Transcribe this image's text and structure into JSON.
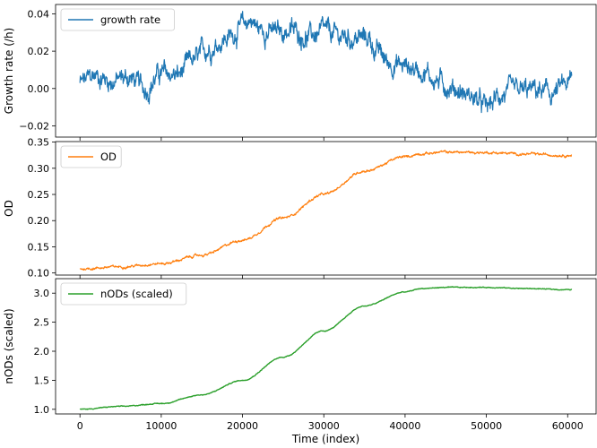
{
  "chart_data": [
    {
      "type": "line",
      "ylabel": "Growth rate (/h)",
      "xlim": [
        -3000,
        63500
      ],
      "ylim": [
        -0.026,
        0.045
      ],
      "yticks": [
        -0.02,
        0.0,
        0.02,
        0.04
      ],
      "ytick_labels": [
        "−0.02",
        "0.00",
        "0.02",
        "0.04"
      ],
      "legend_position": "upper left",
      "series": [
        {
          "name": "growth rate",
          "color": "#1f77b4",
          "noise": 0.0045,
          "x": [
            0,
            2000,
            4000,
            6000,
            8000,
            10000,
            12000,
            14000,
            16000,
            18000,
            20000,
            21000,
            22000,
            24000,
            26000,
            28000,
            30000,
            32000,
            34000,
            35500,
            36500,
            38000,
            40000,
            42000,
            44000,
            46000,
            48000,
            50000,
            52000,
            54000,
            56000,
            58000,
            60000,
            60500
          ],
          "y": [
            0.003,
            0.007,
            0.004,
            0.006,
            0.0,
            0.008,
            0.007,
            0.015,
            0.022,
            0.027,
            0.033,
            0.037,
            0.032,
            0.03,
            0.031,
            0.028,
            0.03,
            0.028,
            0.027,
            0.027,
            0.02,
            0.014,
            0.012,
            0.01,
            0.004,
            0.0,
            -0.004,
            -0.01,
            -0.003,
            -0.002,
            -0.001,
            -0.003,
            0.002,
            0.004
          ]
        }
      ]
    },
    {
      "type": "line",
      "ylabel": "OD",
      "xlim": [
        -3000,
        63500
      ],
      "ylim": [
        0.096,
        0.351
      ],
      "yticks": [
        0.1,
        0.15,
        0.2,
        0.25,
        0.3,
        0.35
      ],
      "ytick_labels": [
        "0.10",
        "0.15",
        "0.20",
        "0.25",
        "0.30",
        "0.35"
      ],
      "legend_position": "upper left",
      "series": [
        {
          "name": "OD",
          "color": "#ff7f0e",
          "noise": 0.002,
          "x": [
            0,
            5000,
            10000,
            15000,
            20000,
            25000,
            30000,
            35000,
            40000,
            42000,
            45000,
            50000,
            55000,
            60000,
            60500
          ],
          "y": [
            0.108,
            0.112,
            0.118,
            0.134,
            0.163,
            0.205,
            0.25,
            0.295,
            0.322,
            0.328,
            0.331,
            0.33,
            0.327,
            0.325,
            0.325
          ]
        }
      ]
    },
    {
      "type": "line",
      "ylabel": "nODs (scaled)",
      "xlabel": "Time (index)",
      "xlim": [
        -3000,
        63500
      ],
      "ylim": [
        0.92,
        3.25
      ],
      "yticks": [
        1.0,
        1.5,
        2.0,
        2.5,
        3.0
      ],
      "ytick_labels": [
        "1.0",
        "1.5",
        "2.0",
        "2.5",
        "3.0"
      ],
      "xticks": [
        0,
        10000,
        20000,
        30000,
        40000,
        50000,
        60000
      ],
      "xtick_labels": [
        "0",
        "10000",
        "20000",
        "30000",
        "40000",
        "50000",
        "60000"
      ],
      "legend_position": "upper left",
      "series": [
        {
          "name": "nODs (scaled)",
          "color": "#2ca02c",
          "noise": 0.006,
          "x": [
            0,
            5000,
            10000,
            15000,
            20000,
            25000,
            30000,
            35000,
            40000,
            42000,
            45000,
            50000,
            55000,
            60000,
            60500
          ],
          "y": [
            1.0,
            1.05,
            1.1,
            1.25,
            1.5,
            1.9,
            2.35,
            2.78,
            3.02,
            3.08,
            3.1,
            3.1,
            3.08,
            3.06,
            3.06
          ]
        }
      ]
    }
  ]
}
